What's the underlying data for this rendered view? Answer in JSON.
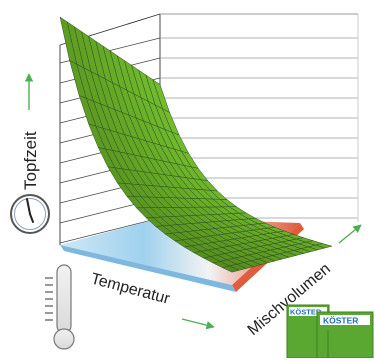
{
  "axes": {
    "y_label": "Topfzeit",
    "x_label": "Temperatur",
    "z_label": "Mischvolumen"
  },
  "logo": {
    "brand": "KÖSTER"
  },
  "colors": {
    "surface_fill": "#7cb342",
    "surface_stroke": "#2f4f1f",
    "floor_cold": "#bfe2f5",
    "floor_hot": "#e05a3c",
    "arrow_green": "#4caf50",
    "logo_green": "#5aa832",
    "logo_blue": "#1f6fb2"
  },
  "icons": {
    "clock": "clock-icon",
    "thermometer": "thermometer-icon",
    "logo": "koester-logo"
  }
}
